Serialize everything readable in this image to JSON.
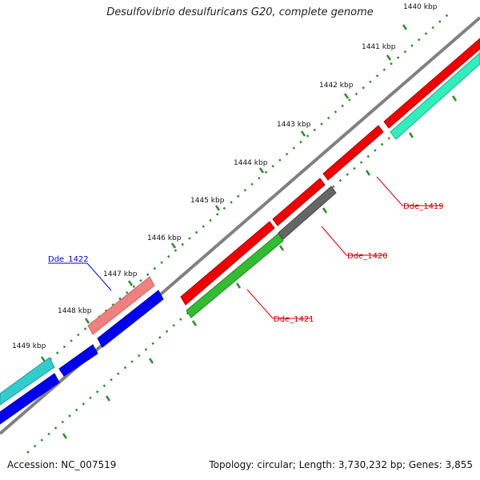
{
  "title": "Desulfovibrio desulfuricans G20, complete genome",
  "accession": "Accession: NC_007519",
  "summary": "Topology: circular; Length: 3,730,232 bp; Genes: 3,855",
  "ticks": [
    "1440 kbp",
    "1441 kbp",
    "1442 kbp",
    "1443 kbp",
    "1444 kbp",
    "1445 kbp",
    "1446 kbp",
    "1447 kbp",
    "1448 kbp",
    "1449 kbp"
  ],
  "gene_labels": [
    {
      "name": "Dde_1419",
      "color": "#cc0000"
    },
    {
      "name": "Dde_1420",
      "color": "#cc0000"
    },
    {
      "name": "Dde_1421",
      "color": "#cc0000"
    },
    {
      "name": "Dde_1422",
      "color": "#0000cc"
    }
  ],
  "colors": {
    "backbone": "#808080",
    "tick": "#2e8b2e",
    "forward_red": "#ee0000",
    "forward_pink": "#ee8080",
    "forward_cyan": "#33cccc",
    "reverse_blue": "#0000ee",
    "reverse_green": "#33bb33",
    "reverse_grey": "#666666",
    "reverse_mint": "#33eebb"
  }
}
